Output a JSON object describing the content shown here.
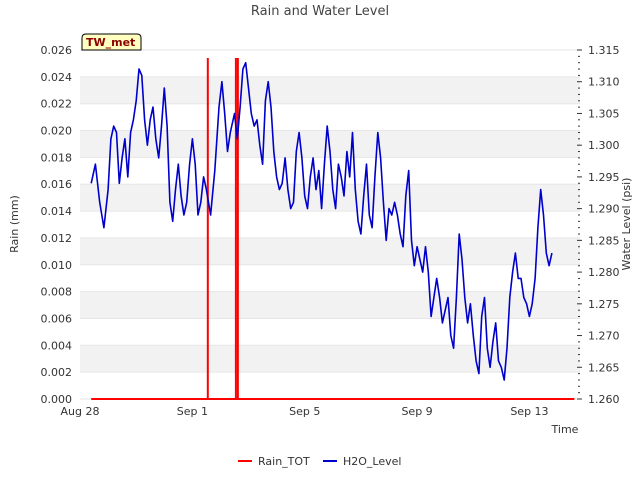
{
  "chart_data": {
    "type": "line",
    "title": "Rain and Water Level",
    "badge": "TW_met",
    "xlabel": "Time",
    "ylabel_left": "Rain (mm)",
    "ylabel_right": "Water Level (psi)",
    "x_ticks": [
      {
        "day": 0,
        "label": "Aug 28"
      },
      {
        "day": 4,
        "label": "Sep 1"
      },
      {
        "day": 8,
        "label": "Sep 5"
      },
      {
        "day": 12,
        "label": "Sep 9"
      },
      {
        "day": 16,
        "label": "Sep 13"
      }
    ],
    "xlim_days": [
      0,
      17.8
    ],
    "y_left": {
      "lim": [
        0,
        0.026
      ],
      "ticks": [
        "0.000",
        "0.002",
        "0.004",
        "0.006",
        "0.008",
        "0.010",
        "0.012",
        "0.014",
        "0.016",
        "0.018",
        "0.020",
        "0.022",
        "0.024",
        "0.026"
      ]
    },
    "y_right": {
      "lim": [
        1.26,
        1.315
      ],
      "ticks": [
        "1.260",
        "1.265",
        "1.270",
        "1.275",
        "1.280",
        "1.285",
        "1.290",
        "1.295",
        "1.300",
        "1.305",
        "1.310",
        "1.315"
      ]
    },
    "series": [
      {
        "name": "Rain_TOT",
        "color": "#ff0000",
        "axis": "left",
        "baseline_range_days": [
          0.4,
          17.6
        ],
        "spikes": [
          {
            "day": 4.55,
            "value": 0.0254
          },
          {
            "day": 5.55,
            "value": 0.0254
          },
          {
            "day": 5.62,
            "value": 0.0254
          }
        ]
      },
      {
        "name": "H2O_Level",
        "color": "#0000cc",
        "axis": "right",
        "points": [
          [
            0.4,
            1.294
          ],
          [
            0.55,
            1.297
          ],
          [
            0.7,
            1.291
          ],
          [
            0.85,
            1.287
          ],
          [
            1.0,
            1.293
          ],
          [
            1.1,
            1.301
          ],
          [
            1.2,
            1.303
          ],
          [
            1.3,
            1.302
          ],
          [
            1.4,
            1.294
          ],
          [
            1.5,
            1.298
          ],
          [
            1.6,
            1.301
          ],
          [
            1.7,
            1.295
          ],
          [
            1.8,
            1.302
          ],
          [
            1.9,
            1.304
          ],
          [
            2.0,
            1.307
          ],
          [
            2.1,
            1.312
          ],
          [
            2.2,
            1.311
          ],
          [
            2.3,
            1.304
          ],
          [
            2.4,
            1.3
          ],
          [
            2.5,
            1.304
          ],
          [
            2.6,
            1.306
          ],
          [
            2.7,
            1.301
          ],
          [
            2.8,
            1.298
          ],
          [
            2.9,
            1.303
          ],
          [
            3.0,
            1.309
          ],
          [
            3.1,
            1.303
          ],
          [
            3.2,
            1.291
          ],
          [
            3.3,
            1.288
          ],
          [
            3.4,
            1.293
          ],
          [
            3.5,
            1.297
          ],
          [
            3.6,
            1.292
          ],
          [
            3.7,
            1.289
          ],
          [
            3.8,
            1.291
          ],
          [
            3.9,
            1.297
          ],
          [
            4.0,
            1.301
          ],
          [
            4.1,
            1.297
          ],
          [
            4.2,
            1.289
          ],
          [
            4.3,
            1.291
          ],
          [
            4.4,
            1.295
          ],
          [
            4.5,
            1.293
          ],
          [
            4.65,
            1.289
          ],
          [
            4.8,
            1.296
          ],
          [
            4.95,
            1.306
          ],
          [
            5.05,
            1.31
          ],
          [
            5.15,
            1.305
          ],
          [
            5.25,
            1.299
          ],
          [
            5.35,
            1.302
          ],
          [
            5.5,
            1.305
          ],
          [
            5.6,
            1.301
          ],
          [
            5.7,
            1.306
          ],
          [
            5.8,
            1.312
          ],
          [
            5.9,
            1.313
          ],
          [
            6.0,
            1.309
          ],
          [
            6.1,
            1.305
          ],
          [
            6.2,
            1.303
          ],
          [
            6.3,
            1.304
          ],
          [
            6.4,
            1.3
          ],
          [
            6.5,
            1.297
          ],
          [
            6.6,
            1.307
          ],
          [
            6.7,
            1.31
          ],
          [
            6.8,
            1.306
          ],
          [
            6.9,
            1.299
          ],
          [
            7.0,
            1.295
          ],
          [
            7.1,
            1.293
          ],
          [
            7.2,
            1.294
          ],
          [
            7.3,
            1.298
          ],
          [
            7.4,
            1.293
          ],
          [
            7.5,
            1.29
          ],
          [
            7.6,
            1.291
          ],
          [
            7.7,
            1.299
          ],
          [
            7.8,
            1.302
          ],
          [
            7.9,
            1.298
          ],
          [
            8.0,
            1.292
          ],
          [
            8.1,
            1.29
          ],
          [
            8.2,
            1.295
          ],
          [
            8.3,
            1.298
          ],
          [
            8.4,
            1.293
          ],
          [
            8.5,
            1.296
          ],
          [
            8.6,
            1.29
          ],
          [
            8.7,
            1.297
          ],
          [
            8.8,
            1.303
          ],
          [
            8.9,
            1.299
          ],
          [
            9.0,
            1.293
          ],
          [
            9.1,
            1.29
          ],
          [
            9.2,
            1.297
          ],
          [
            9.3,
            1.295
          ],
          [
            9.4,
            1.292
          ],
          [
            9.5,
            1.299
          ],
          [
            9.6,
            1.295
          ],
          [
            9.7,
            1.302
          ],
          [
            9.8,
            1.293
          ],
          [
            9.9,
            1.288
          ],
          [
            10.0,
            1.286
          ],
          [
            10.1,
            1.292
          ],
          [
            10.2,
            1.297
          ],
          [
            10.3,
            1.289
          ],
          [
            10.4,
            1.287
          ],
          [
            10.5,
            1.295
          ],
          [
            10.6,
            1.302
          ],
          [
            10.7,
            1.298
          ],
          [
            10.8,
            1.291
          ],
          [
            10.9,
            1.285
          ],
          [
            11.0,
            1.29
          ],
          [
            11.1,
            1.289
          ],
          [
            11.2,
            1.291
          ],
          [
            11.3,
            1.289
          ],
          [
            11.4,
            1.286
          ],
          [
            11.5,
            1.284
          ],
          [
            11.6,
            1.292
          ],
          [
            11.7,
            1.296
          ],
          [
            11.8,
            1.285
          ],
          [
            11.9,
            1.281
          ],
          [
            12.0,
            1.284
          ],
          [
            12.1,
            1.282
          ],
          [
            12.2,
            1.28
          ],
          [
            12.3,
            1.284
          ],
          [
            12.4,
            1.28
          ],
          [
            12.5,
            1.273
          ],
          [
            12.6,
            1.276
          ],
          [
            12.7,
            1.279
          ],
          [
            12.8,
            1.276
          ],
          [
            12.9,
            1.272
          ],
          [
            13.0,
            1.274
          ],
          [
            13.1,
            1.276
          ],
          [
            13.2,
            1.27
          ],
          [
            13.3,
            1.268
          ],
          [
            13.4,
            1.276
          ],
          [
            13.5,
            1.286
          ],
          [
            13.6,
            1.282
          ],
          [
            13.7,
            1.276
          ],
          [
            13.8,
            1.272
          ],
          [
            13.9,
            1.275
          ],
          [
            14.0,
            1.27
          ],
          [
            14.1,
            1.266
          ],
          [
            14.2,
            1.264
          ],
          [
            14.3,
            1.273
          ],
          [
            14.4,
            1.276
          ],
          [
            14.5,
            1.268
          ],
          [
            14.6,
            1.265
          ],
          [
            14.7,
            1.269
          ],
          [
            14.8,
            1.272
          ],
          [
            14.9,
            1.266
          ],
          [
            15.0,
            1.265
          ],
          [
            15.1,
            1.263
          ],
          [
            15.2,
            1.268
          ],
          [
            15.3,
            1.276
          ],
          [
            15.4,
            1.28
          ],
          [
            15.5,
            1.283
          ],
          [
            15.6,
            1.279
          ],
          [
            15.7,
            1.279
          ],
          [
            15.8,
            1.276
          ],
          [
            15.9,
            1.275
          ],
          [
            16.0,
            1.273
          ],
          [
            16.1,
            1.275
          ],
          [
            16.2,
            1.279
          ],
          [
            16.3,
            1.287
          ],
          [
            16.4,
            1.293
          ],
          [
            16.5,
            1.289
          ],
          [
            16.6,
            1.283
          ],
          [
            16.7,
            1.281
          ],
          [
            16.8,
            1.283
          ]
        ]
      }
    ],
    "legend": [
      "Rain_TOT",
      "H2O_Level"
    ],
    "legend_position": "bottom-center",
    "grid": "horizontal alternating bands"
  }
}
